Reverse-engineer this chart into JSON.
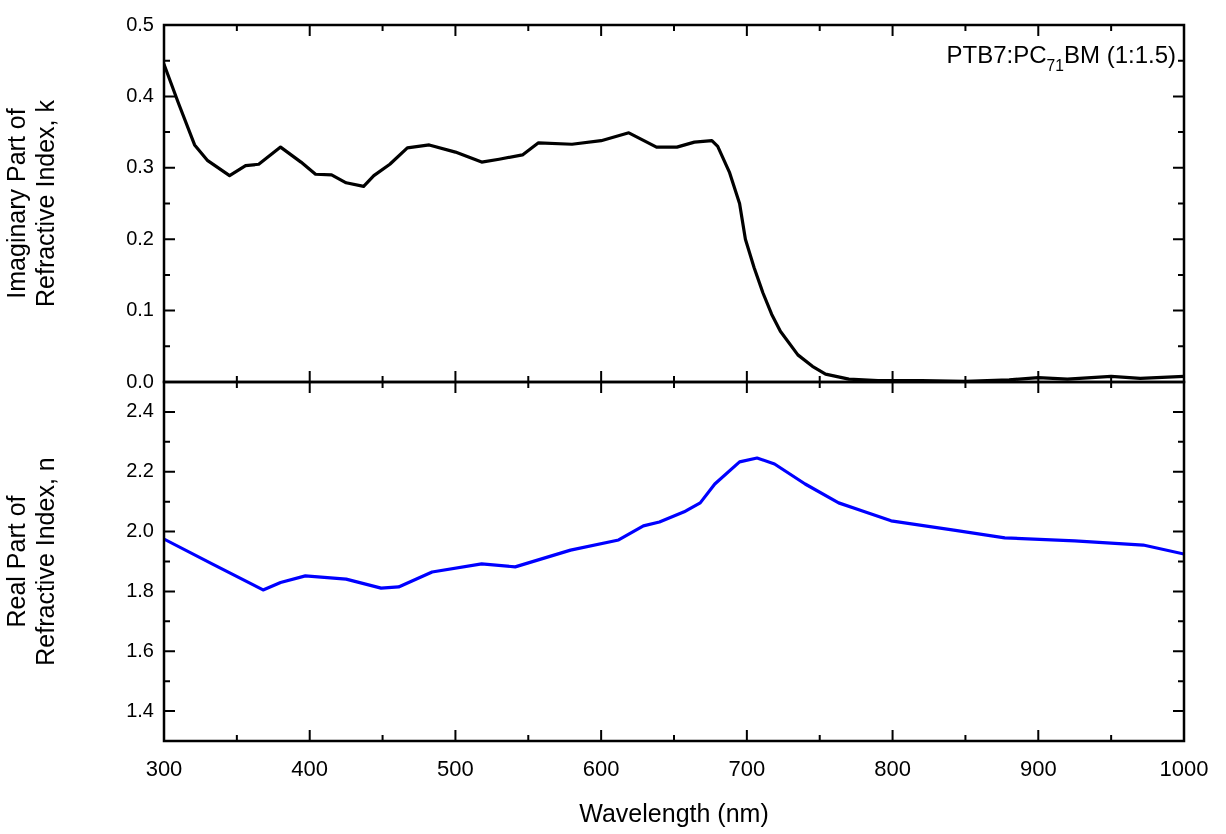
{
  "chart_data": [
    {
      "type": "line",
      "ylabel": "Imaginary Part of\nRefractive Index, k",
      "annotations": [
        "PTB7:PC$_{71}$BM (1:1.5)"
      ],
      "series": [
        {
          "color": "#000000",
          "x": [
            300,
            310,
            321,
            330,
            345,
            356,
            365,
            380,
            394,
            404,
            415,
            425,
            437,
            444,
            455,
            467,
            482,
            500,
            518,
            530,
            546,
            557,
            580,
            600,
            619,
            638,
            652,
            664,
            676,
            680,
            688,
            695,
            699,
            705,
            711,
            717,
            723,
            735,
            745,
            754,
            770,
            790,
            820,
            850,
            880,
            900,
            920,
            950,
            970,
            1000
          ],
          "values": [
            0.445,
            0.39,
            0.332,
            0.31,
            0.289,
            0.303,
            0.305,
            0.329,
            0.308,
            0.291,
            0.29,
            0.279,
            0.274,
            0.289,
            0.305,
            0.328,
            0.332,
            0.322,
            0.308,
            0.312,
            0.318,
            0.335,
            0.333,
            0.338,
            0.349,
            0.329,
            0.329,
            0.336,
            0.338,
            0.33,
            0.294,
            0.25,
            0.2,
            0.16,
            0.125,
            0.095,
            0.071,
            0.038,
            0.022,
            0.011,
            0.004,
            0.002,
            0.002,
            0.001,
            0.003,
            0.006,
            0.004,
            0.008,
            0.005,
            0.008
          ]
        }
      ],
      "xlim": [
        300,
        1000
      ],
      "xticks": [
        300,
        {
          "value": 350,
          "label": null
        },
        400,
        {
          "value": 450,
          "label": null
        },
        500,
        {
          "value": 550,
          "label": null
        },
        600,
        {
          "value": 650,
          "label": null
        },
        700,
        {
          "value": 750,
          "label": null
        },
        800,
        {
          "value": 850,
          "label": null
        },
        900,
        {
          "value": 950,
          "label": null
        },
        1000
      ],
      "ylim": [
        0,
        0.5
      ],
      "yticks": [
        {
          "value": 0,
          "label": "0.0"
        },
        {
          "value": 0.05,
          "label": null
        },
        0.1,
        {
          "value": 0.15,
          "label": null
        },
        0.2,
        {
          "value": 0.25,
          "label": null
        },
        0.3,
        {
          "value": 0.35,
          "label": null
        },
        0.4,
        {
          "value": 0.45,
          "label": null
        },
        0.5
      ],
      "tick_labels": "y",
      "grid": false,
      "legend": false,
      "marker": "none",
      "line_style": "solid"
    },
    {
      "type": "line",
      "xlabel": "Wavelength (nm)",
      "ylabel": "Real Part of\nRefractive Index, n",
      "series": [
        {
          "color": "#0000ff",
          "x": [
            300,
            333,
            368,
            380,
            397,
            425,
            449,
            461,
            484,
            518,
            541,
            579,
            612,
            629,
            640,
            657,
            668,
            678,
            695,
            707,
            719,
            740,
            763,
            799,
            842,
            877,
            925,
            972,
            1000
          ],
          "values": [
            1.975,
            1.892,
            1.805,
            1.83,
            1.852,
            1.841,
            1.811,
            1.815,
            1.865,
            1.892,
            1.882,
            1.938,
            1.972,
            2.019,
            2.032,
            2.066,
            2.096,
            2.159,
            2.233,
            2.246,
            2.226,
            2.159,
            2.096,
            2.036,
            2.005,
            1.979,
            1.969,
            1.955,
            1.925
          ]
        }
      ],
      "xlim": [
        300,
        1000
      ],
      "xticks": [
        300,
        {
          "value": 350,
          "label": null
        },
        400,
        {
          "value": 450,
          "label": null
        },
        500,
        {
          "value": 550,
          "label": null
        },
        600,
        {
          "value": 650,
          "label": null
        },
        700,
        {
          "value": 750,
          "label": null
        },
        800,
        {
          "value": 850,
          "label": null
        },
        900,
        {
          "value": 950,
          "label": null
        },
        1000
      ],
      "ylim": [
        1.3,
        2.5
      ],
      "yticks": [
        1.4,
        {
          "value": 1.5,
          "label": null
        },
        1.6,
        {
          "value": 1.7,
          "label": null
        },
        1.8,
        {
          "value": 1.9,
          "label": null
        },
        {
          "value": 2.0,
          "label": "2.0"
        },
        {
          "value": 2.1,
          "label": null
        },
        2.2,
        {
          "value": 2.3,
          "label": null
        },
        2.4
      ],
      "grid": false,
      "legend": false,
      "marker": "none",
      "line_style": "solid"
    }
  ]
}
